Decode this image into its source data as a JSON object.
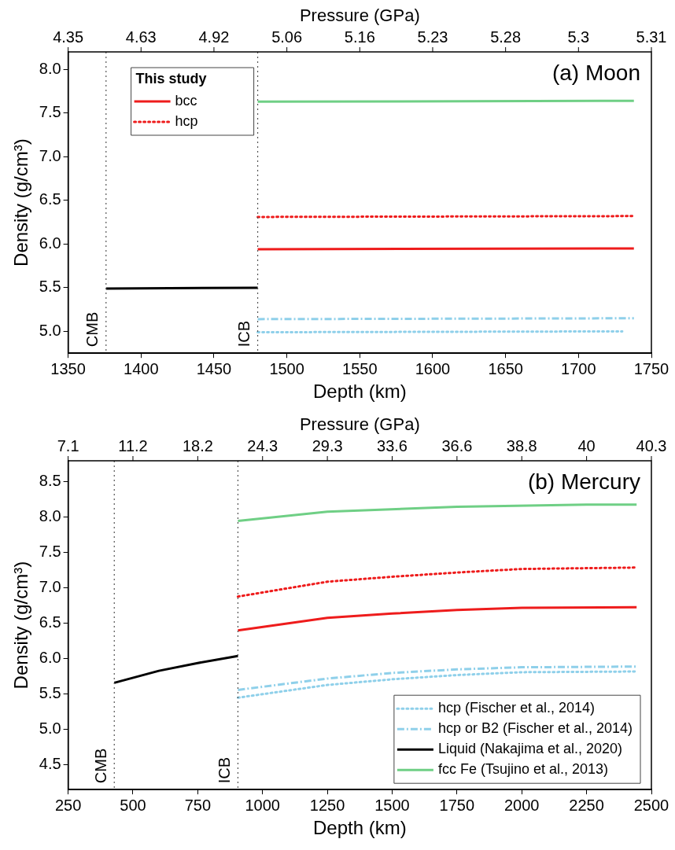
{
  "chart_data": [
    {
      "type": "line",
      "annotations": [
        "(a) Moon",
        "4.35",
        "4.63",
        "4.92",
        "5.06",
        "5.16",
        "5.23",
        "5.28",
        "5.3",
        "5.31"
      ],
      "xlabel": "Depth (km)",
      "ylabel": "Density (g/cm³)",
      "x2label": "Pressure (GPa)",
      "legend_title": "This study",
      "legend": "top left",
      "grid": false,
      "xlim": [
        1350,
        1750
      ],
      "xticks": [
        1350,
        1400,
        1450,
        1500,
        1550,
        1600,
        1650,
        1700,
        1750
      ],
      "ylim": [
        4.75,
        8.2
      ],
      "yticks": [
        {
          "value": 5,
          "label": "5.0"
        },
        5.5,
        {
          "value": 6,
          "label": "6.0"
        },
        6.5,
        {
          "value": 7,
          "label": "7.0"
        },
        7.5,
        {
          "value": 8,
          "label": "8.0"
        }
      ],
      "ref_lines": [
        {
          "axis": "x",
          "value": 1376,
          "label": "CMB",
          "color": "#555555",
          "line_style": "dotted"
        },
        {
          "axis": "x",
          "value": 1480,
          "label": "ICB",
          "color": "#555555",
          "line_style": "dotted"
        }
      ],
      "series": [
        {
          "name": "bcc",
          "color": "#ee1c1c",
          "line_style": "solid",
          "x": [
            1480,
            1738
          ],
          "values": [
            5.94,
            5.95
          ]
        },
        {
          "name": "hcp",
          "color": "#ee1c1c",
          "line_style": "dotted",
          "x": [
            1480,
            1738
          ],
          "values": [
            6.31,
            6.32
          ]
        },
        {
          "color": "#8fd0ea",
          "line_style": "dotted",
          "x": [
            1480,
            1730
          ],
          "values": [
            4.99,
            5.0
          ]
        },
        {
          "color": "#8fd0ea",
          "line_style": "dashdot",
          "x": [
            1480,
            1738
          ],
          "values": [
            5.14,
            5.15
          ]
        },
        {
          "color": "#000000",
          "line_style": "solid",
          "x": [
            1376,
            1480
          ],
          "values": [
            5.49,
            5.5
          ]
        },
        {
          "color": "#6fcf85",
          "line_style": "solid",
          "x": [
            1480,
            1738
          ],
          "values": [
            7.63,
            7.64
          ]
        }
      ]
    },
    {
      "type": "line",
      "annotations": [
        "(b) Mercury",
        "7.1",
        "11.2",
        "18.2",
        "24.3",
        "29.3",
        "33.6",
        "36.6",
        "38.8",
        "40",
        "40.3"
      ],
      "xlabel": "Depth (km)",
      "ylabel": "Density (g/cm³)",
      "x2label": "Pressure (GPa)",
      "legend": "bottom right",
      "grid": false,
      "xlim": [
        250,
        2500
      ],
      "xticks": [
        250,
        500,
        750,
        1000,
        1250,
        1500,
        1750,
        2000,
        2250,
        2500
      ],
      "ylim": [
        4.15,
        8.8
      ],
      "yticks": [
        4.5,
        {
          "value": 5,
          "label": "5.0"
        },
        5.5,
        {
          "value": 6,
          "label": "6.0"
        },
        6.5,
        {
          "value": 7,
          "label": "7.0"
        },
        7.5,
        {
          "value": 8,
          "label": "8.0"
        },
        8.5
      ],
      "ref_lines": [
        {
          "axis": "x",
          "value": 428,
          "label": "CMB",
          "color": "#555555",
          "line_style": "dotted"
        },
        {
          "axis": "x",
          "value": 905,
          "label": "ICB",
          "color": "#555555",
          "line_style": "dotted"
        }
      ],
      "series": [
        {
          "color": "#ee1c1c",
          "line_style": "solid",
          "x": [
            905,
            1250,
            1500,
            1750,
            2000,
            2443
          ],
          "values": [
            6.4,
            6.58,
            6.64,
            6.69,
            6.72,
            6.73
          ]
        },
        {
          "color": "#ee1c1c",
          "line_style": "dotted",
          "x": [
            905,
            1250,
            1500,
            1750,
            2000,
            2443
          ],
          "values": [
            6.88,
            7.09,
            7.16,
            7.22,
            7.27,
            7.29
          ]
        },
        {
          "name": "hcp (Fischer et al., 2014)",
          "color": "#8fd0ea",
          "line_style": "dotted",
          "x": [
            905,
            1250,
            1500,
            1750,
            2000,
            2443
          ],
          "values": [
            5.45,
            5.63,
            5.71,
            5.77,
            5.81,
            5.82
          ]
        },
        {
          "name": "hcp or B2 (Fischer et al., 2014)",
          "color": "#8fd0ea",
          "line_style": "dashdot",
          "x": [
            905,
            1250,
            1500,
            1750,
            2000,
            2443
          ],
          "values": [
            5.56,
            5.72,
            5.8,
            5.85,
            5.88,
            5.89
          ]
        },
        {
          "name": "Liquid (Nakajima et al., 2020)",
          "color": "#000000",
          "line_style": "solid",
          "x": [
            428,
            600,
            750,
            905
          ],
          "values": [
            5.66,
            5.83,
            5.94,
            6.04
          ]
        },
        {
          "name": "fcc Fe (Tsujino et al., 2013)",
          "color": "#6fcf85",
          "line_style": "solid",
          "x": [
            905,
            1250,
            1750,
            2250,
            2443
          ],
          "values": [
            7.95,
            8.08,
            8.15,
            8.18,
            8.18
          ]
        }
      ]
    }
  ]
}
